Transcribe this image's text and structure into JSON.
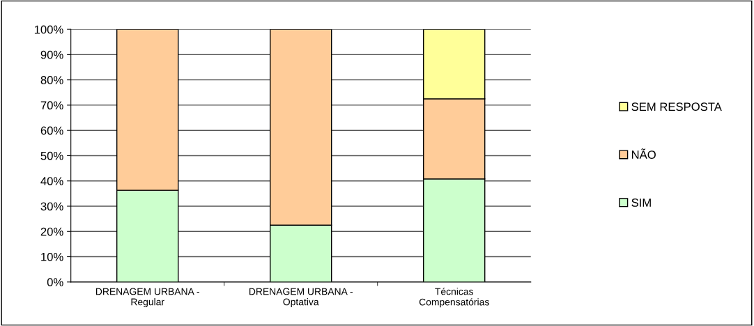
{
  "chart_data": {
    "type": "bar",
    "stacked": true,
    "categories": [
      "DRENAGEM URBANA -\nRegular",
      "DRENAGEM URBANA -\nOptativa",
      "Técnicas\nCompensatórias"
    ],
    "series": [
      {
        "name": "SIM",
        "color": "#ccffcc",
        "values": [
          36.3,
          22.5,
          40.8
        ]
      },
      {
        "name": "NÃO",
        "color": "#ffcc99",
        "values": [
          63.7,
          77.5,
          31.7
        ]
      },
      {
        "name": "SEM RESPOSTA",
        "color": "#ffff99",
        "values": [
          null,
          null,
          27.5
        ]
      }
    ],
    "ylim": [
      0,
      100
    ],
    "yticks": [
      {
        "value": 0,
        "label": "0%"
      },
      {
        "value": 10,
        "label": "10%"
      },
      {
        "value": 20,
        "label": "20%"
      },
      {
        "value": 30,
        "label": "30%"
      },
      {
        "value": 40,
        "label": "40%"
      },
      {
        "value": 50,
        "label": "50%"
      },
      {
        "value": 60,
        "label": "60%"
      },
      {
        "value": 70,
        "label": "70%"
      },
      {
        "value": 80,
        "label": "80%"
      },
      {
        "value": 90,
        "label": "90%"
      },
      {
        "value": 100,
        "label": "100%"
      }
    ],
    "grid": "y",
    "legend": "right"
  }
}
